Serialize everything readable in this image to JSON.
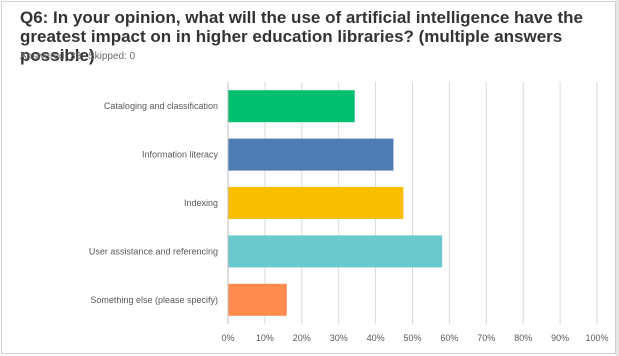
{
  "question": {
    "title": "Q6: In your opinion, what will the use of artificial intelligence have the greatest impact on in higher education libraries? (multiple answers possible)",
    "answered_label": "Answered: 38",
    "skipped_label": "Skipped: 0"
  },
  "chart_data": {
    "type": "bar",
    "orientation": "horizontal",
    "categories": [
      "Cataloging and classification",
      "Information literacy",
      "Indexing",
      "User assistance and referencing",
      "Something else (please specify)"
    ],
    "values": [
      34.2,
      44.7,
      47.4,
      57.9,
      15.8
    ],
    "colors": [
      "#00bf6f",
      "#507cb6",
      "#f9be00",
      "#6bc8cd",
      "#ff8b4f"
    ],
    "x_ticks": [
      "0%",
      "10%",
      "20%",
      "30%",
      "40%",
      "50%",
      "60%",
      "70%",
      "80%",
      "90%",
      "100%"
    ],
    "xlim": [
      0,
      100
    ],
    "grid": true,
    "legend": "none"
  }
}
